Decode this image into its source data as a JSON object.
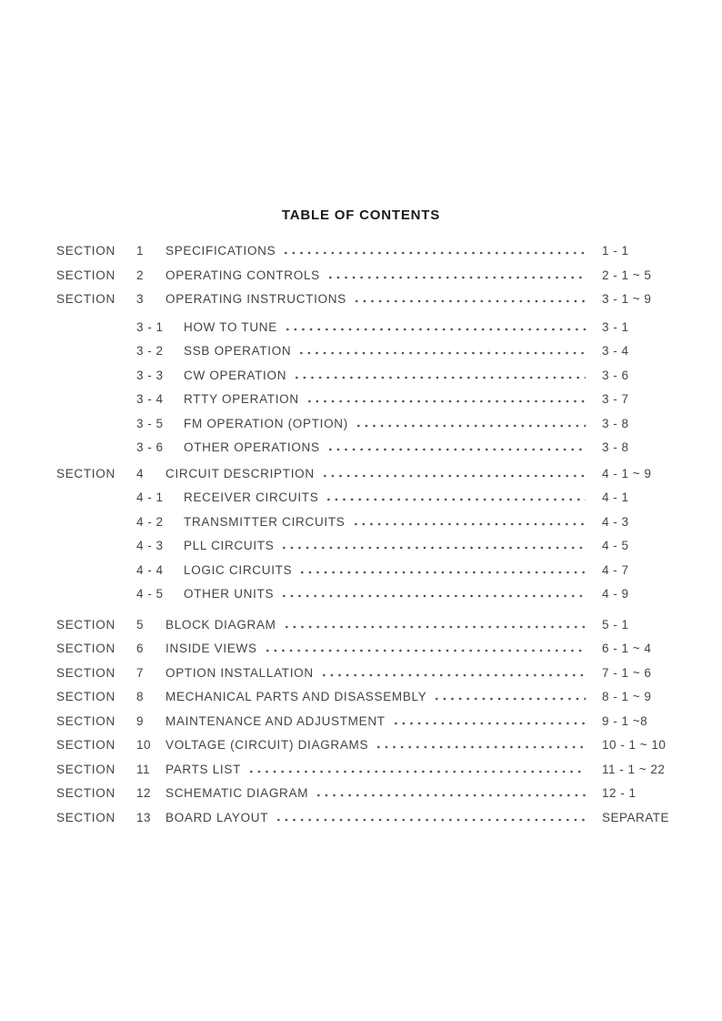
{
  "page_title": "TABLE OF CONTENTS",
  "toc": {
    "entries": [
      {
        "level": "section",
        "label": "SECTION",
        "num": "1",
        "title": "SPECIFICATIONS",
        "page": "1 - 1"
      },
      {
        "level": "section",
        "label": "SECTION",
        "num": "2",
        "title": "OPERATING CONTROLS",
        "page": "2 - 1 ~ 5"
      },
      {
        "level": "section",
        "label": "SECTION",
        "num": "3",
        "title": "OPERATING INSTRUCTIONS",
        "page": "3 - 1 ~ 9"
      },
      {
        "level": "sub",
        "num": "3 - 1",
        "title": "HOW TO TUNE",
        "page": "3 - 1"
      },
      {
        "level": "sub",
        "num": "3 - 2",
        "title": "SSB OPERATION",
        "page": "3 - 4"
      },
      {
        "level": "sub",
        "num": "3 - 3",
        "title": "CW OPERATION",
        "page": "3 - 6"
      },
      {
        "level": "sub",
        "num": "3 - 4",
        "title": "RTTY OPERATION",
        "page": "3 - 7"
      },
      {
        "level": "sub",
        "num": "3 - 5",
        "title": "FM OPERATION (OPTION)",
        "page": "3 - 8"
      },
      {
        "level": "sub",
        "num": "3 - 6",
        "title": "OTHER OPERATIONS",
        "page": "3 - 8"
      },
      {
        "level": "section",
        "label": "SECTION",
        "num": "4",
        "title": "CIRCUIT DESCRIPTION",
        "page": "4 - 1 ~ 9"
      },
      {
        "level": "sub",
        "num": "4 - 1",
        "title": "RECEIVER CIRCUITS",
        "page": "4 - 1"
      },
      {
        "level": "sub",
        "num": "4 - 2",
        "title": "TRANSMITTER CIRCUITS",
        "page": "4 - 3"
      },
      {
        "level": "sub",
        "num": "4 - 3",
        "title": "PLL CIRCUITS",
        "page": "4 - 5"
      },
      {
        "level": "sub",
        "num": "4 - 4",
        "title": "LOGIC CIRCUITS",
        "page": "4 - 7"
      },
      {
        "level": "sub",
        "num": "4 - 5",
        "title": "OTHER UNITS",
        "page": "4 - 9"
      },
      {
        "level": "section",
        "label": "SECTION",
        "num": "5",
        "title": "BLOCK DIAGRAM",
        "page": "5 - 1"
      },
      {
        "level": "section",
        "label": "SECTION",
        "num": "6",
        "title": "INSIDE VIEWS",
        "page": "6 - 1 ~ 4"
      },
      {
        "level": "section",
        "label": "SECTION",
        "num": "7",
        "title": "OPTION INSTALLATION",
        "page": "7 - 1 ~ 6"
      },
      {
        "level": "section",
        "label": "SECTION",
        "num": "8",
        "title": "MECHANICAL PARTS AND DISASSEMBLY",
        "page": "8 - 1 ~ 9"
      },
      {
        "level": "section",
        "label": "SECTION",
        "num": "9",
        "title": "MAINTENANCE AND ADJUSTMENT",
        "page": "9 - 1 ~8"
      },
      {
        "level": "section",
        "label": "SECTION",
        "num": "10",
        "title": "VOLTAGE (CIRCUIT) DIAGRAMS",
        "page": "10 - 1 ~ 10"
      },
      {
        "level": "section",
        "label": "SECTION",
        "num": "11",
        "title": "PARTS LIST",
        "page": "11 - 1 ~ 22"
      },
      {
        "level": "section",
        "label": "SECTION",
        "num": "12",
        "title": "SCHEMATIC DIAGRAM",
        "page": "12 - 1"
      },
      {
        "level": "section",
        "label": "SECTION",
        "num": "13",
        "title": "BOARD LAYOUT",
        "page": "SEPARATE"
      }
    ]
  }
}
